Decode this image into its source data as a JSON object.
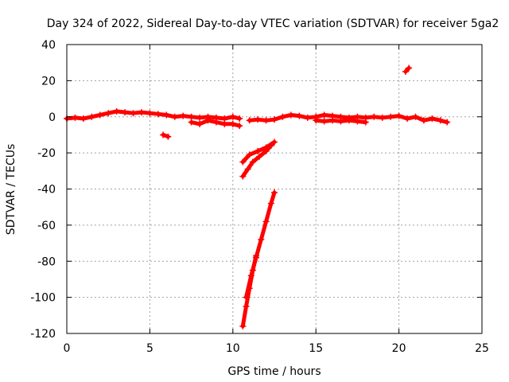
{
  "chart_data": {
    "type": "scatter",
    "title": "Day 324 of 2022, Sidereal Day-to-day VTEC variation (SDTVAR) for receiver 5ga2",
    "xlabel": "GPS time / hours",
    "ylabel": "SDTVAR / TECUs",
    "xlim": [
      0,
      25
    ],
    "ylim": [
      -120,
      40
    ],
    "xticks": [
      0,
      5,
      10,
      15,
      20,
      25
    ],
    "yticks": [
      -120,
      -100,
      -80,
      -60,
      -40,
      -20,
      0,
      20,
      40
    ],
    "grid": true,
    "series": [
      {
        "name": "SDTVAR",
        "color": "#ff0000",
        "marker": "plus",
        "segments": [
          [
            [
              0.0,
              -1
            ],
            [
              0.5,
              -0.5
            ],
            [
              1.0,
              -1
            ],
            [
              1.5,
              0
            ],
            [
              2.0,
              1
            ],
            [
              2.5,
              2
            ],
            [
              3.0,
              3
            ],
            [
              3.5,
              2.5
            ],
            [
              4.0,
              2
            ],
            [
              4.5,
              2.5
            ],
            [
              5.0,
              2
            ],
            [
              5.5,
              1.5
            ],
            [
              6.0,
              1
            ],
            [
              6.5,
              0
            ],
            [
              7.0,
              0.5
            ],
            [
              7.5,
              0
            ],
            [
              8.0,
              -0.5
            ],
            [
              8.5,
              0
            ],
            [
              9.0,
              -0.5
            ],
            [
              9.5,
              -1
            ],
            [
              10.0,
              0
            ],
            [
              10.4,
              -1
            ]
          ],
          [
            [
              7.5,
              -3
            ],
            [
              8.0,
              -4
            ],
            [
              8.5,
              -2
            ],
            [
              9.0,
              -3
            ],
            [
              9.5,
              -4
            ],
            [
              10.0,
              -4
            ],
            [
              10.4,
              -5
            ]
          ],
          [
            [
              5.8,
              -10
            ],
            [
              6.1,
              -11
            ]
          ],
          [
            [
              11.0,
              -2
            ],
            [
              11.5,
              -1.5
            ],
            [
              12.0,
              -2
            ],
            [
              12.5,
              -1.5
            ],
            [
              13.0,
              0
            ],
            [
              13.5,
              1
            ],
            [
              14.0,
              0.5
            ],
            [
              14.5,
              -0.5
            ],
            [
              15.0,
              0
            ],
            [
              15.5,
              1
            ],
            [
              16.0,
              0.5
            ],
            [
              16.5,
              0
            ],
            [
              17.0,
              -0.5
            ],
            [
              17.5,
              0
            ],
            [
              18.0,
              -0.5
            ],
            [
              18.5,
              0
            ],
            [
              19.0,
              -0.5
            ],
            [
              19.5,
              0
            ],
            [
              20.0,
              0.5
            ],
            [
              20.5,
              -1
            ],
            [
              21.0,
              0
            ],
            [
              21.5,
              -2
            ],
            [
              22.0,
              -1
            ],
            [
              22.5,
              -2
            ],
            [
              22.9,
              -3
            ]
          ],
          [
            [
              15.0,
              -2
            ],
            [
              15.5,
              -2.5
            ],
            [
              16.0,
              -2
            ],
            [
              16.5,
              -2.5
            ],
            [
              17.0,
              -2
            ],
            [
              17.5,
              -2.5
            ],
            [
              18.0,
              -3
            ]
          ],
          [
            [
              20.4,
              25
            ],
            [
              20.6,
              27
            ]
          ],
          [
            [
              10.6,
              -25
            ],
            [
              11.0,
              -21
            ],
            [
              11.5,
              -19
            ],
            [
              12.0,
              -17
            ],
            [
              12.5,
              -14
            ]
          ],
          [
            [
              10.6,
              -33
            ],
            [
              10.9,
              -29
            ],
            [
              11.2,
              -25
            ],
            [
              11.6,
              -22
            ],
            [
              12.0,
              -19
            ],
            [
              12.3,
              -16
            ]
          ],
          [
            [
              10.6,
              -116
            ],
            [
              10.8,
              -105
            ],
            [
              11.0,
              -95
            ],
            [
              11.2,
              -85
            ],
            [
              11.4,
              -77
            ]
          ],
          [
            [
              10.8,
              -100
            ],
            [
              11.1,
              -88
            ],
            [
              11.4,
              -78
            ],
            [
              11.7,
              -68
            ],
            [
              12.0,
              -58
            ],
            [
              12.3,
              -48
            ],
            [
              12.5,
              -42
            ]
          ]
        ]
      }
    ]
  }
}
